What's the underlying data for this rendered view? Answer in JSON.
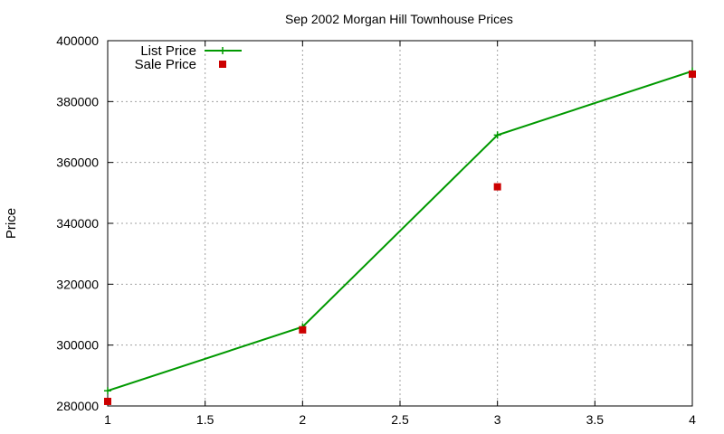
{
  "chart_data": {
    "type": "line",
    "title": "Sep 2002 Morgan Hill Townhouse Prices",
    "xlabel": "",
    "ylabel": "Price",
    "xlim": [
      1,
      4
    ],
    "ylim": [
      280000,
      400000
    ],
    "x_ticks": [
      1,
      1.5,
      2,
      2.5,
      3,
      3.5,
      4
    ],
    "x_tick_labels": [
      "1",
      "1.5",
      "2",
      "2.5",
      "3",
      "3.5",
      "4"
    ],
    "y_ticks": [
      280000,
      300000,
      320000,
      340000,
      360000,
      380000,
      400000
    ],
    "y_tick_labels": [
      "280000",
      "300000",
      "320000",
      "340000",
      "360000",
      "380000",
      "400000"
    ],
    "grid": true,
    "legend_position": "top-left",
    "series": [
      {
        "name": "List Price",
        "style": "line-with-plus-markers",
        "color": "#009900",
        "x": [
          1,
          2,
          3,
          4
        ],
        "y": [
          285000,
          306000,
          369000,
          390000
        ]
      },
      {
        "name": "Sale Price",
        "style": "square-markers",
        "color": "#cc0000",
        "x": [
          1,
          2,
          3,
          4
        ],
        "y": [
          281500,
          305000,
          352000,
          389000
        ]
      }
    ]
  }
}
